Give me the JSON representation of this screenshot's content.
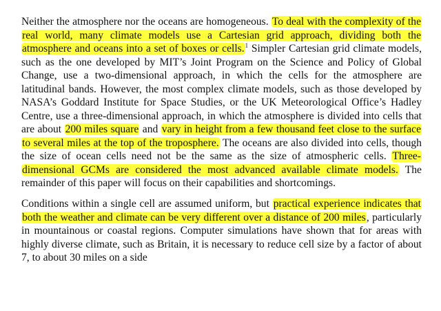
{
  "document": {
    "paragraphs": [
      {
        "segments": [
          {
            "text": "Neither the atmosphere nor the oceans are homogeneous. ",
            "highlight": false
          },
          {
            "text": "To deal with the complexity of the real world, many climate models use a Cartesian grid approach, dividing both the atmosphere and oceans into a set of boxes or cells.",
            "highlight": true
          },
          {
            "text": "1",
            "highlight": false,
            "superscript": true
          },
          {
            "text": " Simpler Cartesian grid climate models, such as the one developed by MIT’s Joint Program on the Science and Policy of Global Change, use a two-dimensional approach, in which the cells for the atmosphere are latitudinal bands. However, the most complex climate models, such as those developed by NASA’s Goddard Institute for Space Studies, or the UK Meteorological Office’s Hadley Centre, use a three-dimensional approach, in which the atmosphere is divided into cells that are about ",
            "highlight": false
          },
          {
            "text": "200 miles square",
            "highlight": true
          },
          {
            "text": " and ",
            "highlight": false
          },
          {
            "text": "vary in height from a few thousand feet close to the surface to several miles at the top of the troposphere.",
            "highlight": true
          },
          {
            "text": " The oceans are also divided into cells, though the size of ocean cells need not be the same as the size of atmospheric cells. ",
            "highlight": false
          },
          {
            "text": "Three-dimensional GCMs are considered the most advanced available climate models.",
            "highlight": true
          },
          {
            "text": " The remainder of this paper will focus on their capabilities and shortcomings.",
            "highlight": false
          }
        ]
      },
      {
        "segments": [
          {
            "text": "Conditions within a single cell are assumed uniform, but ",
            "highlight": false
          },
          {
            "text": "practical experience indicates that both the weather and climate can be very different over a distance of 200 miles",
            "highlight": true
          },
          {
            "text": ", particularly in mountainous or coastal regions.  Computer simulations have shown that for areas with highly diverse climate, such as Britain, it is necessary to reduce cell size by a factor of about 7, to about 30 miles on a side",
            "highlight": false
          }
        ]
      }
    ],
    "colors": {
      "highlight": "#ffff3c",
      "text": "#111111",
      "background": "#ffffff"
    }
  }
}
